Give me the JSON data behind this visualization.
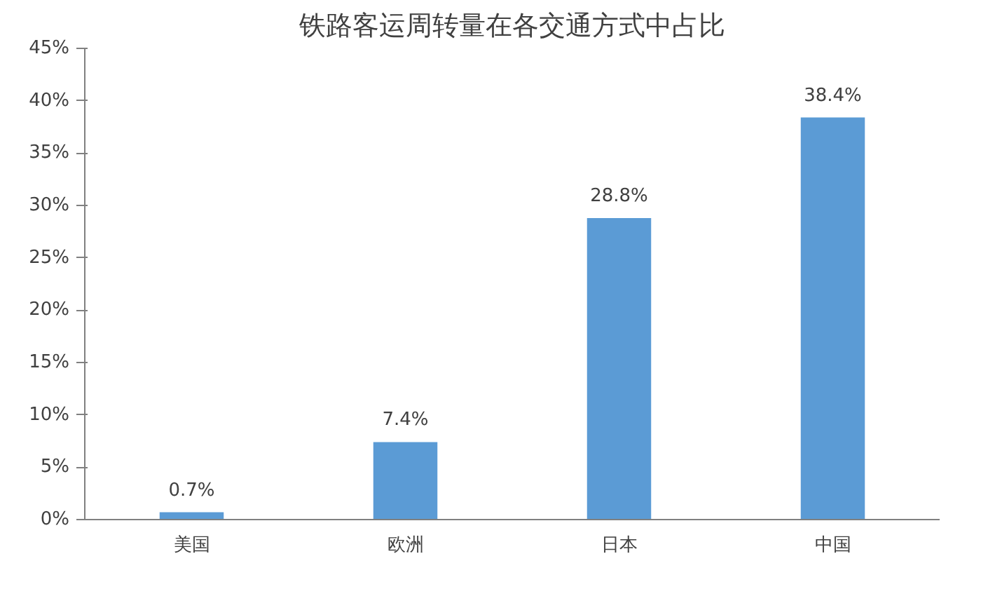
{
  "chart_data": {
    "type": "bar",
    "title": "铁路客运周转量在各交通方式中占比",
    "categories": [
      "美国",
      "欧洲",
      "日本",
      "中国"
    ],
    "values": [
      0.7,
      7.4,
      28.8,
      38.4
    ],
    "value_labels": [
      "0.7%",
      "7.4%",
      "28.8%",
      "38.4%"
    ],
    "color": "#5b9bd5",
    "ylim": [
      0,
      45
    ],
    "yticks": [
      {
        "value": 0,
        "label": "0%"
      },
      {
        "value": 5,
        "label": "5%"
      },
      {
        "value": 10,
        "label": "10%"
      },
      {
        "value": 15,
        "label": "15%"
      },
      {
        "value": 20,
        "label": "20%"
      },
      {
        "value": 25,
        "label": "25%"
      },
      {
        "value": 30,
        "label": "30%"
      },
      {
        "value": 35,
        "label": "35%"
      },
      {
        "value": 40,
        "label": "40%"
      },
      {
        "value": 45,
        "label": "45%"
      }
    ],
    "grid": false
  }
}
